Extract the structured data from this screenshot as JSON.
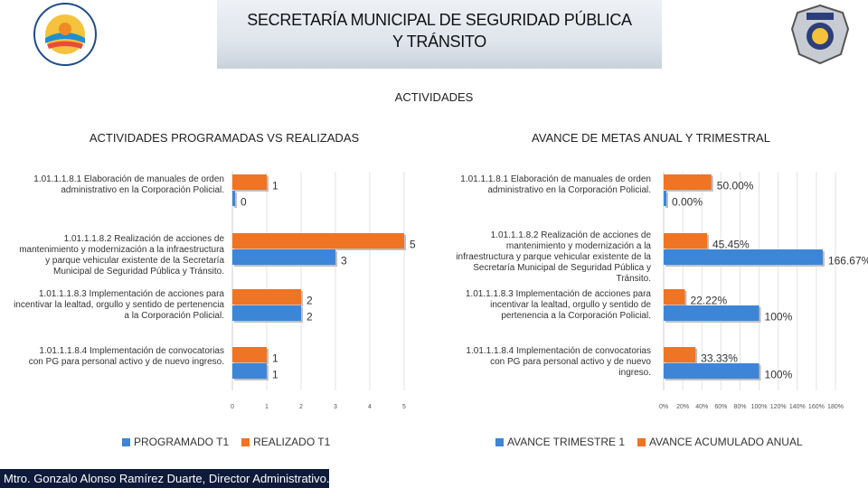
{
  "header": {
    "title_line1": "SECRETARÍA MUNICIPAL DE SEGURIDAD PÚBLICA",
    "title_line2": "Y TRÁNSITO"
  },
  "page_title": "ACTIVIDADES",
  "footer": {
    "text": "Mtro. Gonzalo Alonso Ramírez Duarte, Director Administrativo."
  },
  "colors": {
    "blue": "#3d85d6",
    "orange": "#ef7424"
  },
  "chart_data": [
    {
      "type": "bar",
      "orientation": "horizontal",
      "title": "ACTIVIDADES PROGRAMADAS VS REALIZADAS",
      "categories": [
        "1.01.1.1.8.1 Elaboración de manuales de orden administrativo en la Corporación Policial.",
        "1.01.1.1.8.2 Realización de acciones de mantenimiento y modernización a la infraestructura y parque vehicular existente de la Secretaría Municipal de Seguridad Pública y Tránsito.",
        "1.01.1.1.8.3 Implementación de acciones para incentivar la lealtad, orgullo y sentido de pertenencia a la Corporación Policial.",
        "1.01.1.1.8.4 Implementación de convocatorias con PG para personal activo y de nuevo ingreso."
      ],
      "series": [
        {
          "name": "PROGRAMADO T1",
          "color": "#3d85d6",
          "values": [
            0,
            3,
            2,
            1
          ],
          "labels": [
            "0",
            "3",
            "2",
            "1"
          ]
        },
        {
          "name": "REALIZADO T1",
          "color": "#ef7424",
          "values": [
            1,
            5,
            2,
            1
          ],
          "labels": [
            "1",
            "5",
            "2",
            "1"
          ]
        }
      ],
      "xlim": [
        0,
        5
      ],
      "xticks": [
        "0",
        "1",
        "2",
        "3",
        "4",
        "5"
      ],
      "legend_position": "bottom"
    },
    {
      "type": "bar",
      "orientation": "horizontal",
      "title": "AVANCE DE METAS ANUAL Y TRIMESTRAL",
      "categories": [
        "1.01.1.1.8.1 Elaboración de manuales de orden administrativo en la Corporación Policial.",
        "1.01.1.1.8.2 Realización de acciones de mantenimiento y modernización a la infraestructura y parque vehicular existente de la Secretaría Municipal de Seguridad Pública y Tránsito.",
        "1.01.1.1.8.3 Implementación de acciones para incentivar la lealtad, orgullo y sentido de pertenencia a la Corporación Policial.",
        "1.01.1.1.8.4 Implementación de convocatorias con PG para personal activo y de nuevo ingreso."
      ],
      "series": [
        {
          "name": "AVANCE TRIMESTRE 1",
          "color": "#3d85d6",
          "values": [
            0,
            166.67,
            100,
            100
          ],
          "labels": [
            "0.00%",
            "166.67%",
            "100%",
            "100%"
          ]
        },
        {
          "name": "AVANCE ACUMULADO ANUAL",
          "color": "#ef7424",
          "values": [
            50,
            45.45,
            22.22,
            33.33
          ],
          "labels": [
            "50.00%",
            "45.45%",
            "22.22%",
            "33.33%"
          ]
        }
      ],
      "xlim": [
        0,
        180
      ],
      "xticks": [
        "0%",
        "20%",
        "40%",
        "60%",
        "80%",
        "100%",
        "120%",
        "140%",
        "160%",
        "180%"
      ],
      "legend_position": "bottom"
    }
  ]
}
